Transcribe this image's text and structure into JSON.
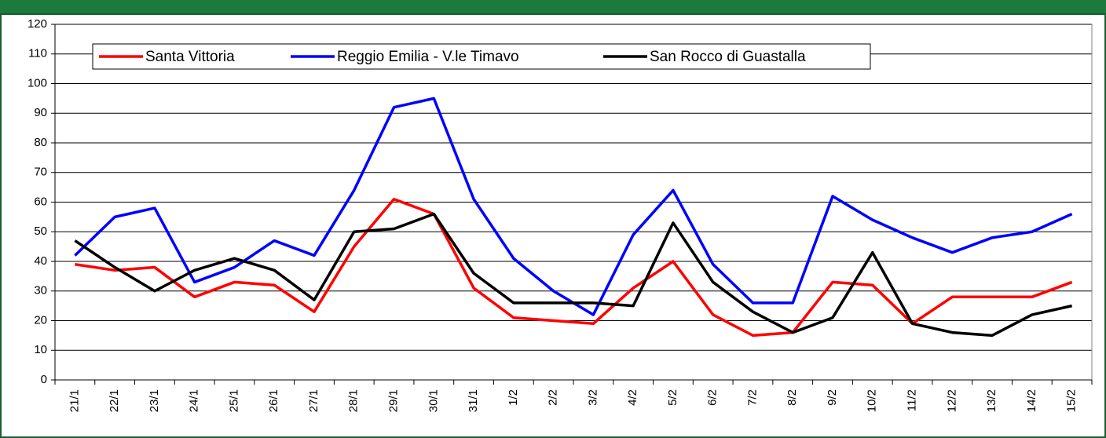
{
  "chart_data": {
    "type": "line",
    "categories": [
      "21/1",
      "22/1",
      "23/1",
      "24/1",
      "25/1",
      "26/1",
      "27/1",
      "28/1",
      "29/1",
      "30/1",
      "31/1",
      "1/2",
      "2/2",
      "3/2",
      "4/2",
      "5/2",
      "6/2",
      "7/2",
      "8/2",
      "9/2",
      "10/2",
      "11/2",
      "12/2",
      "13/2",
      "14/2",
      "15/2"
    ],
    "series": [
      {
        "name": "Santa Vittoria",
        "color": "#ff0000",
        "values": [
          39,
          37,
          38,
          28,
          33,
          32,
          23,
          45,
          61,
          56,
          31,
          21,
          20,
          19,
          31,
          40,
          22,
          15,
          16,
          33,
          32,
          19,
          28,
          28,
          28,
          33
        ]
      },
      {
        "name": "Reggio Emilia - V.le Timavo",
        "color": "#0000ff",
        "values": [
          42,
          55,
          58,
          33,
          38,
          47,
          42,
          64,
          92,
          95,
          61,
          41,
          30,
          22,
          49,
          64,
          39,
          26,
          26,
          62,
          54,
          48,
          43,
          48,
          50,
          56
        ]
      },
      {
        "name": "San Rocco di Guastalla",
        "color": "#000000",
        "values": [
          47,
          38,
          30,
          37,
          41,
          37,
          27,
          50,
          51,
          56,
          36,
          26,
          26,
          26,
          25,
          53,
          33,
          23,
          16,
          21,
          43,
          19,
          16,
          15,
          22,
          25
        ]
      }
    ],
    "ylim": [
      0,
      120
    ],
    "yticks": [
      0,
      10,
      20,
      30,
      40,
      50,
      60,
      70,
      80,
      90,
      100,
      110,
      120
    ],
    "grid": true,
    "legend": "top-left"
  }
}
